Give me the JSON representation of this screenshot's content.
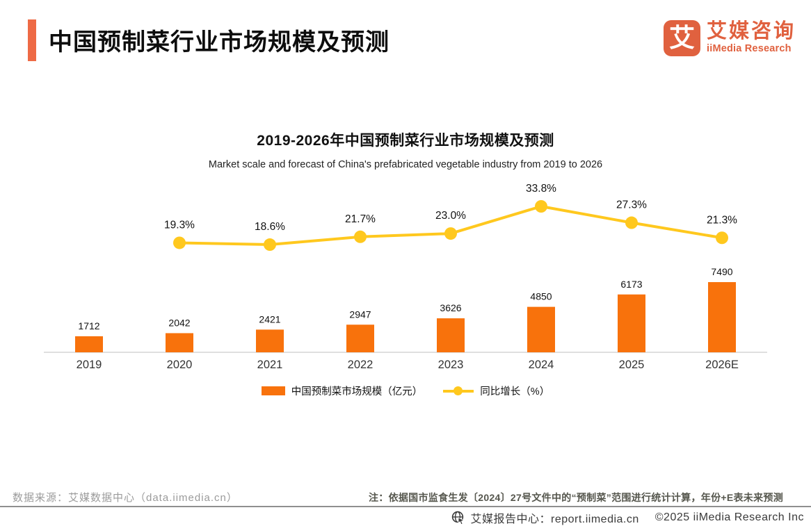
{
  "page": {
    "title": "中国预制菜行业市场规模及预测",
    "accent_color": "#EE6A45",
    "background": "#ffffff"
  },
  "logo": {
    "mark_glyph": "艾",
    "name_cn": "艾媒咨询",
    "name_en": "iiMedia Research",
    "color": "#E0613F"
  },
  "chart": {
    "title": "2019-2026年中国预制菜行业市场规模及预测",
    "subtitle": "Market scale and forecast of China's prefabricated vegetable industry from 2019 to 2026"
  },
  "chart_data": {
    "type": "bar+line",
    "categories": [
      "2019",
      "2020",
      "2021",
      "2022",
      "2023",
      "2024",
      "2025",
      "2026E"
    ],
    "series": [
      {
        "name": "中国预制菜市场规模（亿元）",
        "type": "bar",
        "color": "#F8720C",
        "values": [
          1712,
          2042,
          2421,
          2947,
          3626,
          4850,
          6173,
          7490
        ]
      },
      {
        "name": "同比增长（%）",
        "type": "line",
        "color": "#FFC81E",
        "values": [
          null,
          19.3,
          18.6,
          21.7,
          23.0,
          33.8,
          27.3,
          21.3
        ]
      }
    ],
    "value_labels": true,
    "grid": false,
    "legend_position": "bottom",
    "label_color": "#111111",
    "axis_line_color": "#cccccc",
    "tick_color": "#333333"
  },
  "legend": {
    "bar_label": "中国预制菜市场规模（亿元）",
    "line_label": "同比增长（%）"
  },
  "footer": {
    "source": "数据来源：艾媒数据中心（data.iimedia.cn）",
    "note": "注：依据国市监食生发〔2024〕27号文件中的“预制菜”范围进行统计计算，年份+E表未来预测",
    "report_center": "艾媒报告中心：report.iimedia.cn",
    "copyright": "©2025  iiMedia Research Inc"
  }
}
